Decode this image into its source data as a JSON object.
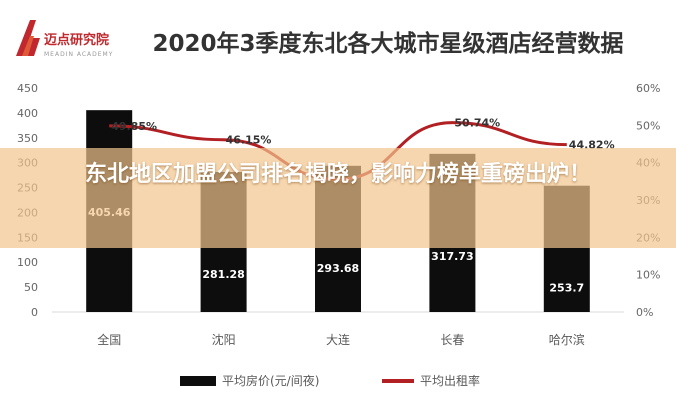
{
  "brand": {
    "name": "迈点研究院",
    "tagline": "MEADIN ACADEMY",
    "logo_color": "#c0282d"
  },
  "overlay": {
    "headline": "东北地区加盟公司排名揭晓，影响力榜单重磅出炉！"
  },
  "chart_data": {
    "type": "bar",
    "title": "2020年3季度东北各大城市星级酒店经营数据",
    "categories": [
      "全国",
      "沈阳",
      "大连",
      "长春",
      "哈尔滨"
    ],
    "series": [
      {
        "name": "平均房价(元/间夜)",
        "type": "bar",
        "axis": "left",
        "color": "#0d0d0d",
        "values": [
          405.46,
          281.28,
          293.68,
          317.73,
          253.7
        ],
        "labels": [
          "405.46",
          "281.28",
          "293.68",
          "317.73",
          "253.7"
        ]
      },
      {
        "name": "平均出租率",
        "type": "line",
        "axis": "right",
        "color": "#b22024",
        "values": [
          49.85,
          46.15,
          35.5,
          50.74,
          44.82
        ],
        "labels": [
          "49.85%",
          "46.15%",
          "",
          "50.74%",
          "44.82%"
        ]
      }
    ],
    "y_left": {
      "min": 0,
      "max": 450,
      "ticks": [
        0,
        50,
        100,
        150,
        200,
        250,
        300,
        350,
        400,
        450
      ]
    },
    "y_right": {
      "min": 0,
      "max": 60,
      "ticks": [
        "0%",
        "10%",
        "20%",
        "30%",
        "40%",
        "50%",
        "60%"
      ],
      "tick_values": [
        0,
        10,
        20,
        30,
        40,
        50,
        60
      ]
    },
    "legend_position": "bottom",
    "grid": false
  }
}
